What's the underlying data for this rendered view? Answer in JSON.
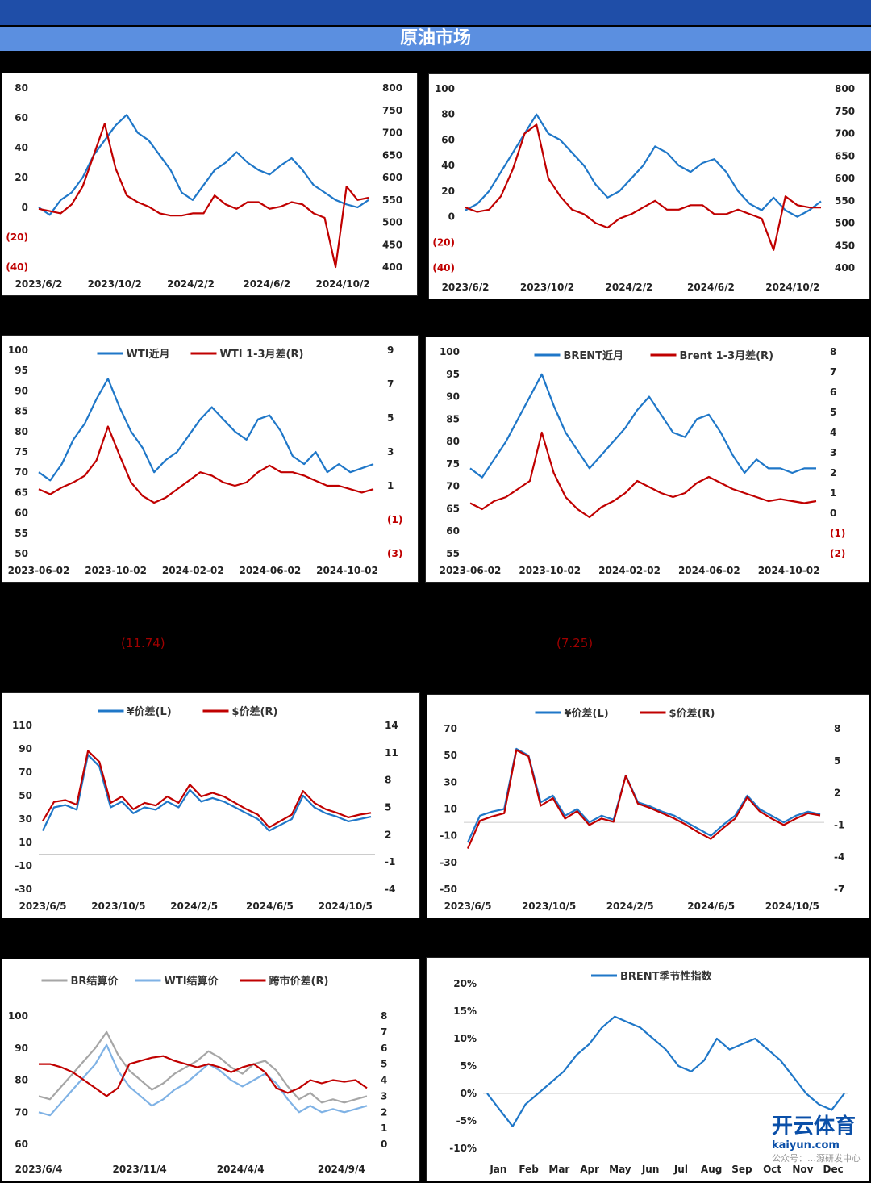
{
  "header": {
    "title": "原油市场"
  },
  "stray_labels": [
    "(11.74)",
    "(7.25)"
  ],
  "watermark": {
    "text": "开云体育",
    "sub": "kaiyun.com",
    "wechat": "公众号：…源研发中心"
  },
  "colors": {
    "blue": "#1f77c8",
    "red": "#c00000",
    "gray": "#a6a6a6",
    "lightblue": "#7fb2e5"
  },
  "chart_data": [
    {
      "id": "c1",
      "type": "line",
      "title": "",
      "x_ticks": [
        "2023/6/2",
        "2023/10/2",
        "2024/2/2",
        "2024/6/2",
        "2024/10/2"
      ],
      "ylim_left": [
        -40,
        80
      ],
      "yticks_left": [
        "80",
        "60",
        "40",
        "20",
        "0",
        "(20)",
        "(40)"
      ],
      "ylim_right": [
        400,
        800
      ],
      "yticks_right": [
        "800",
        "750",
        "700",
        "650",
        "600",
        "550",
        "500",
        "450",
        "400"
      ],
      "series": [
        {
          "name": "blue",
          "axis": "left",
          "color": "#1f77c8",
          "values": [
            0,
            -5,
            5,
            10,
            20,
            35,
            45,
            55,
            62,
            50,
            45,
            35,
            25,
            10,
            5,
            15,
            25,
            30,
            37,
            30,
            25,
            22,
            28,
            33,
            25,
            15,
            10,
            5,
            2,
            0,
            5
          ]
        },
        {
          "name": "red",
          "axis": "right",
          "color": "#c00000",
          "values": [
            530,
            525,
            520,
            540,
            580,
            650,
            720,
            620,
            560,
            545,
            535,
            520,
            515,
            515,
            520,
            520,
            560,
            540,
            530,
            545,
            545,
            530,
            535,
            545,
            540,
            520,
            510,
            400,
            580,
            550,
            555
          ]
        }
      ]
    },
    {
      "id": "c2",
      "type": "line",
      "x_ticks": [
        "2023/6/2",
        "2023/10/2",
        "2024/2/2",
        "2024/6/2",
        "2024/10/2"
      ],
      "ylim_left": [
        -40,
        100
      ],
      "yticks_left": [
        "100",
        "80",
        "60",
        "40",
        "20",
        "0",
        "(20)",
        "(40)"
      ],
      "ylim_right": [
        400,
        800
      ],
      "yticks_right": [
        "800",
        "750",
        "700",
        "650",
        "600",
        "550",
        "500",
        "450",
        "400"
      ],
      "series": [
        {
          "name": "blue",
          "axis": "left",
          "color": "#1f77c8",
          "values": [
            5,
            10,
            20,
            35,
            50,
            65,
            80,
            65,
            60,
            50,
            40,
            25,
            15,
            20,
            30,
            40,
            55,
            50,
            40,
            35,
            42,
            45,
            35,
            20,
            10,
            5,
            15,
            5,
            0,
            5,
            12
          ]
        },
        {
          "name": "red",
          "axis": "right",
          "color": "#c00000",
          "values": [
            535,
            525,
            530,
            560,
            620,
            700,
            720,
            600,
            560,
            530,
            520,
            500,
            490,
            510,
            520,
            535,
            550,
            530,
            530,
            540,
            540,
            520,
            520,
            530,
            520,
            510,
            440,
            560,
            540,
            535,
            535
          ]
        }
      ]
    },
    {
      "id": "c3",
      "type": "line",
      "legend": [
        "WTI近月",
        "WTI 1-3月差(R)"
      ],
      "x_ticks": [
        "2023-06-02",
        "2023-10-02",
        "2024-02-02",
        "2024-06-02",
        "2024-10-02"
      ],
      "ylim_left": [
        50,
        100
      ],
      "yticks_left": [
        "100",
        "95",
        "90",
        "85",
        "80",
        "75",
        "70",
        "65",
        "60",
        "55",
        "50"
      ],
      "ylim_right": [
        -3,
        9
      ],
      "yticks_right": [
        "9",
        "7",
        "5",
        "3",
        "1",
        "(1)",
        "(3)"
      ],
      "series": [
        {
          "name": "WTI近月",
          "axis": "left",
          "color": "#1f77c8",
          "values": [
            70,
            68,
            72,
            78,
            82,
            88,
            93,
            86,
            80,
            76,
            70,
            73,
            75,
            79,
            83,
            86,
            83,
            80,
            78,
            83,
            84,
            80,
            74,
            72,
            75,
            70,
            72,
            70,
            71,
            72
          ]
        },
        {
          "name": "WTI 1-3月差(R)",
          "axis": "right",
          "color": "#c00000",
          "values": [
            0.8,
            0.5,
            0.9,
            1.2,
            1.6,
            2.5,
            4.5,
            2.8,
            1.2,
            0.4,
            0.0,
            0.3,
            0.8,
            1.3,
            1.8,
            1.6,
            1.2,
            1.0,
            1.2,
            1.8,
            2.2,
            1.8,
            1.8,
            1.6,
            1.3,
            1.0,
            1.0,
            0.8,
            0.6,
            0.8
          ]
        }
      ]
    },
    {
      "id": "c4",
      "type": "line",
      "legend": [
        "BRENT近月",
        "Brent 1-3月差(R)"
      ],
      "x_ticks": [
        "2023-06-02",
        "2023-10-02",
        "2024-02-02",
        "2024-06-02",
        "2024-10-02"
      ],
      "ylim_left": [
        55,
        100
      ],
      "yticks_left": [
        "100",
        "95",
        "90",
        "85",
        "80",
        "75",
        "70",
        "65",
        "60",
        "55"
      ],
      "ylim_right": [
        -2,
        8
      ],
      "yticks_right": [
        "8",
        "7",
        "6",
        "5",
        "4",
        "3",
        "2",
        "1",
        "0",
        "(1)",
        "(2)"
      ],
      "series": [
        {
          "name": "BRENT近月",
          "axis": "left",
          "color": "#1f77c8",
          "values": [
            74,
            72,
            76,
            80,
            85,
            90,
            95,
            88,
            82,
            78,
            74,
            77,
            80,
            83,
            87,
            90,
            86,
            82,
            81,
            85,
            86,
            82,
            77,
            73,
            76,
            74,
            74,
            73,
            74,
            74
          ]
        },
        {
          "name": "Brent 1-3月差(R)",
          "axis": "right",
          "color": "#c00000",
          "values": [
            0.5,
            0.2,
            0.6,
            0.8,
            1.2,
            1.6,
            4.0,
            2.0,
            0.8,
            0.2,
            -0.2,
            0.3,
            0.6,
            1.0,
            1.6,
            1.3,
            1.0,
            0.8,
            1.0,
            1.5,
            1.8,
            1.5,
            1.2,
            1.0,
            0.8,
            0.6,
            0.7,
            0.6,
            0.5,
            0.6
          ]
        }
      ]
    },
    {
      "id": "c5",
      "type": "line",
      "legend": [
        "¥价差(L)",
        "$价差(R)"
      ],
      "x_ticks": [
        "2023/6/5",
        "2023/10/5",
        "2024/2/5",
        "2024/6/5",
        "2024/10/5"
      ],
      "ylim_left": [
        -30,
        110
      ],
      "yticks_left": [
        "110",
        "90",
        "70",
        "50",
        "30",
        "10",
        "-10",
        "-30"
      ],
      "ylim_right": [
        -4,
        14
      ],
      "yticks_right": [
        "14",
        "11",
        "8",
        "5",
        "2",
        "-1",
        "-4"
      ],
      "series": [
        {
          "name": "¥价差(L)",
          "axis": "left",
          "color": "#1f77c8",
          "values": [
            20,
            40,
            42,
            38,
            85,
            75,
            40,
            45,
            35,
            40,
            38,
            45,
            40,
            55,
            45,
            48,
            45,
            40,
            35,
            30,
            20,
            25,
            30,
            50,
            40,
            35,
            32,
            28,
            30,
            32
          ]
        },
        {
          "name": "$价差(R)",
          "axis": "right",
          "color": "#c00000",
          "values": [
            3.5,
            5.6,
            5.8,
            5.3,
            11.2,
            10.0,
            5.5,
            6.2,
            4.8,
            5.5,
            5.2,
            6.2,
            5.5,
            7.5,
            6.2,
            6.6,
            6.2,
            5.5,
            4.8,
            4.2,
            2.8,
            3.5,
            4.2,
            6.8,
            5.5,
            4.8,
            4.4,
            3.9,
            4.2,
            4.4
          ]
        }
      ]
    },
    {
      "id": "c6",
      "type": "line",
      "legend": [
        "¥价差(L)",
        "$价差(R)"
      ],
      "x_ticks": [
        "2023/6/5",
        "2023/10/5",
        "2024/2/5",
        "2024/6/5",
        "2024/10/5"
      ],
      "ylim_left": [
        -50,
        70
      ],
      "yticks_left": [
        "70",
        "50",
        "30",
        "10",
        "-10",
        "-30",
        "-50"
      ],
      "ylim_right": [
        -7,
        8
      ],
      "yticks_right": [
        "8",
        "5",
        "2",
        "-1",
        "-4",
        "-7"
      ],
      "series": [
        {
          "name": "¥价差(L)",
          "axis": "left",
          "color": "#1f77c8",
          "values": [
            -15,
            5,
            8,
            10,
            55,
            50,
            15,
            20,
            5,
            10,
            0,
            5,
            2,
            35,
            15,
            12,
            8,
            5,
            0,
            -5,
            -10,
            -2,
            5,
            20,
            10,
            5,
            0,
            5,
            8,
            6
          ]
        },
        {
          "name": "$价差(R)",
          "axis": "right",
          "color": "#c00000",
          "values": [
            -3.2,
            -0.6,
            -0.2,
            0.1,
            6.0,
            5.4,
            0.8,
            1.5,
            -0.4,
            0.3,
            -1.0,
            -0.4,
            -0.7,
            3.6,
            1.0,
            0.6,
            0.1,
            -0.4,
            -1.0,
            -1.7,
            -2.3,
            -1.3,
            -0.4,
            1.6,
            0.3,
            -0.4,
            -1.0,
            -0.4,
            0.1,
            -0.1
          ]
        }
      ]
    },
    {
      "id": "c7",
      "type": "line",
      "legend": [
        "BR结算价",
        "WTI结算价",
        "跨市价差(R)"
      ],
      "x_ticks": [
        "2023/6/4",
        "2023/11/4",
        "2024/4/4",
        "2024/9/4"
      ],
      "ylim_left": [
        60,
        100
      ],
      "yticks_left": [
        "100",
        "90",
        "80",
        "70",
        "60"
      ],
      "ylim_right": [
        0,
        8
      ],
      "yticks_right": [
        "8",
        "7",
        "6",
        "5",
        "4",
        "3",
        "2",
        "1",
        "0"
      ],
      "series": [
        {
          "name": "BR结算价",
          "axis": "left",
          "color": "#a6a6a6",
          "values": [
            75,
            74,
            78,
            82,
            86,
            90,
            95,
            88,
            83,
            80,
            77,
            79,
            82,
            84,
            86,
            89,
            87,
            84,
            82,
            85,
            86,
            83,
            78,
            74,
            76,
            73,
            74,
            73,
            74,
            75
          ]
        },
        {
          "name": "WTI结算价",
          "axis": "left",
          "color": "#7fb2e5",
          "values": [
            70,
            69,
            73,
            77,
            81,
            85,
            91,
            83,
            78,
            75,
            72,
            74,
            77,
            79,
            82,
            85,
            83,
            80,
            78,
            80,
            82,
            79,
            74,
            70,
            72,
            70,
            71,
            70,
            71,
            72
          ]
        },
        {
          "name": "跨市价差(R)",
          "axis": "right",
          "color": "#c00000",
          "values": [
            5.0,
            5.0,
            4.8,
            4.5,
            4.0,
            3.5,
            3.0,
            3.5,
            5.0,
            5.2,
            5.4,
            5.5,
            5.2,
            5.0,
            4.8,
            5.0,
            4.8,
            4.5,
            4.8,
            5.0,
            4.5,
            3.5,
            3.2,
            3.5,
            4.0,
            3.8,
            4.0,
            3.9,
            4.0,
            3.5
          ]
        }
      ]
    },
    {
      "id": "c8",
      "type": "line",
      "legend": [
        "BRENT季节性指数"
      ],
      "x_ticks": [
        "Jan",
        "Feb",
        "Mar",
        "Apr",
        "May",
        "Jun",
        "Jul",
        "Aug",
        "Sep",
        "Oct",
        "Nov",
        "Dec"
      ],
      "ylim_left": [
        -10,
        20
      ],
      "yticks_left": [
        "20%",
        "15%",
        "10%",
        "5%",
        "0%",
        "-5%",
        "-10%"
      ],
      "series": [
        {
          "name": "BRENT季节性指数",
          "axis": "left",
          "color": "#1f77c8",
          "values": [
            0,
            -3,
            -6,
            -2,
            0,
            2,
            4,
            7,
            9,
            12,
            14,
            13,
            12,
            10,
            8,
            5,
            4,
            6,
            10,
            8,
            9,
            10,
            8,
            6,
            3,
            0,
            -2,
            -3,
            0
          ]
        }
      ]
    }
  ]
}
